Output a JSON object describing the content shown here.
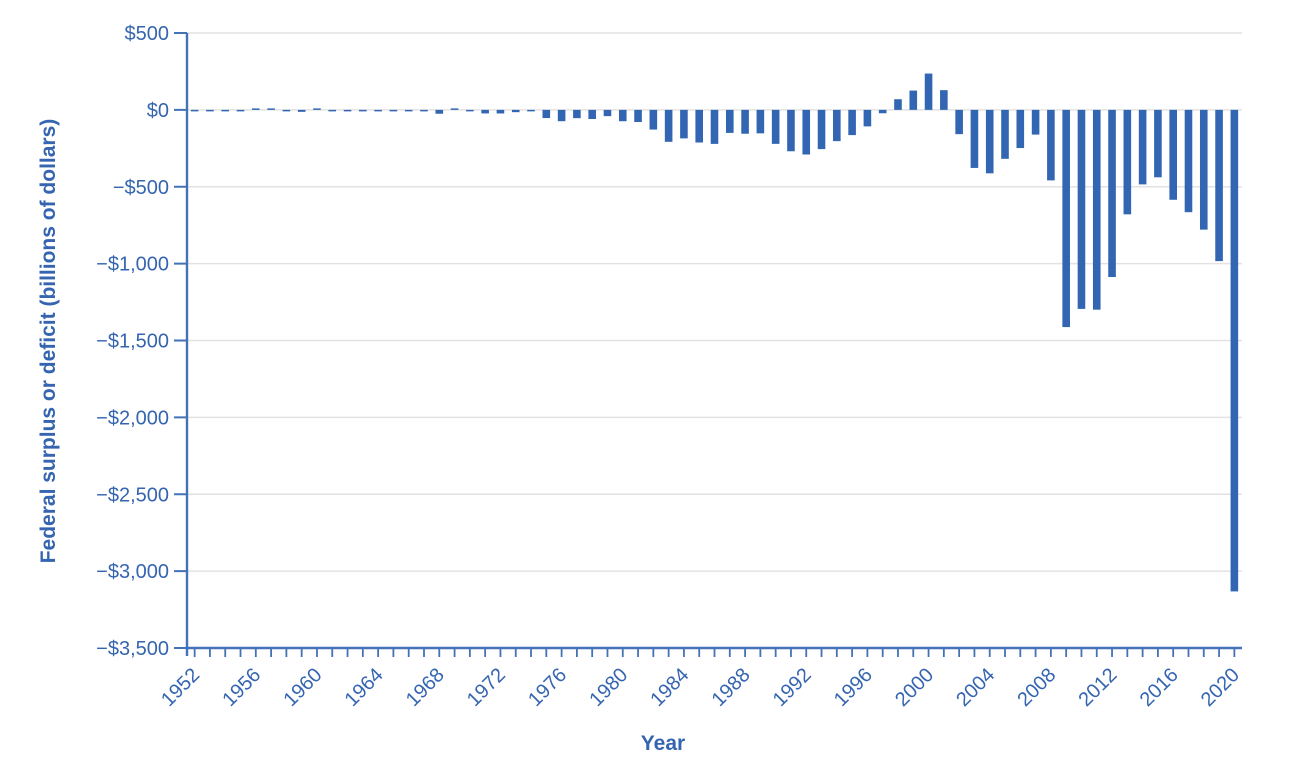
{
  "chart_data": {
    "type": "bar",
    "title": "",
    "xlabel": "Year",
    "ylabel": "Federal surplus or deficit (billions of dollars)",
    "x": [
      1952,
      1953,
      1954,
      1955,
      1956,
      1957,
      1958,
      1959,
      1960,
      1961,
      1962,
      1963,
      1964,
      1965,
      1966,
      1967,
      1968,
      1969,
      1970,
      1971,
      1972,
      1973,
      1974,
      1975,
      1976,
      1977,
      1978,
      1979,
      1980,
      1981,
      1982,
      1983,
      1984,
      1985,
      1986,
      1987,
      1988,
      1989,
      1990,
      1991,
      1992,
      1993,
      1994,
      1995,
      1996,
      1997,
      1998,
      1999,
      2000,
      2001,
      2002,
      2003,
      2004,
      2005,
      2006,
      2007,
      2008,
      2009,
      2010,
      2011,
      2012,
      2013,
      2014,
      2015,
      2016,
      2017,
      2018,
      2019,
      2020
    ],
    "values": [
      -1.5,
      -6.5,
      -1.2,
      -3.0,
      3.9,
      3.4,
      -2.8,
      -12.8,
      0.3,
      -3.3,
      -7.1,
      -4.8,
      -5.9,
      -1.4,
      -3.7,
      -8.6,
      -25.2,
      3.2,
      -2.8,
      -23.0,
      -23.4,
      -14.9,
      -6.1,
      -53.2,
      -73.7,
      -53.7,
      -59.2,
      -40.7,
      -73.8,
      -79.0,
      -128.0,
      -207.8,
      -185.4,
      -212.3,
      -221.2,
      -149.7,
      -155.2,
      -152.6,
      -221.0,
      -269.2,
      -290.3,
      -255.1,
      -203.2,
      -164.0,
      -107.4,
      -21.9,
      69.3,
      125.6,
      236.2,
      128.2,
      -157.8,
      -377.6,
      -412.7,
      -318.3,
      -248.2,
      -160.7,
      -458.6,
      -1412.7,
      -1294.4,
      -1299.6,
      -1087.0,
      -679.5,
      -484.6,
      -438.5,
      -584.7,
      -665.4,
      -779.0,
      -983.6,
      -3131.9
    ],
    "ylim": [
      -3500,
      500
    ],
    "y_ticks": [
      {
        "value": 500,
        "label": "$500"
      },
      {
        "value": 0,
        "label": "$0"
      },
      {
        "value": -500,
        "label": "−$500"
      },
      {
        "value": -1000,
        "label": "−$1,000"
      },
      {
        "value": -1500,
        "label": "−$1,500"
      },
      {
        "value": -2000,
        "label": "−$2,000"
      },
      {
        "value": -2500,
        "label": "−$2,500"
      },
      {
        "value": -3000,
        "label": "−$3,000"
      },
      {
        "value": -3500,
        "label": "−$3,500"
      }
    ],
    "x_label_years": [
      1952,
      1956,
      1960,
      1964,
      1968,
      1972,
      1976,
      1980,
      1984,
      1988,
      1992,
      1996,
      2000,
      2004,
      2008,
      2012,
      2016,
      2020
    ],
    "grid": "horizontal",
    "legend": "none",
    "colors": {
      "bar": "#3366b2",
      "axis": "#4472b7",
      "text": "#3565b0",
      "gridline": "#e2e2e2",
      "background": "#ffffff"
    }
  }
}
